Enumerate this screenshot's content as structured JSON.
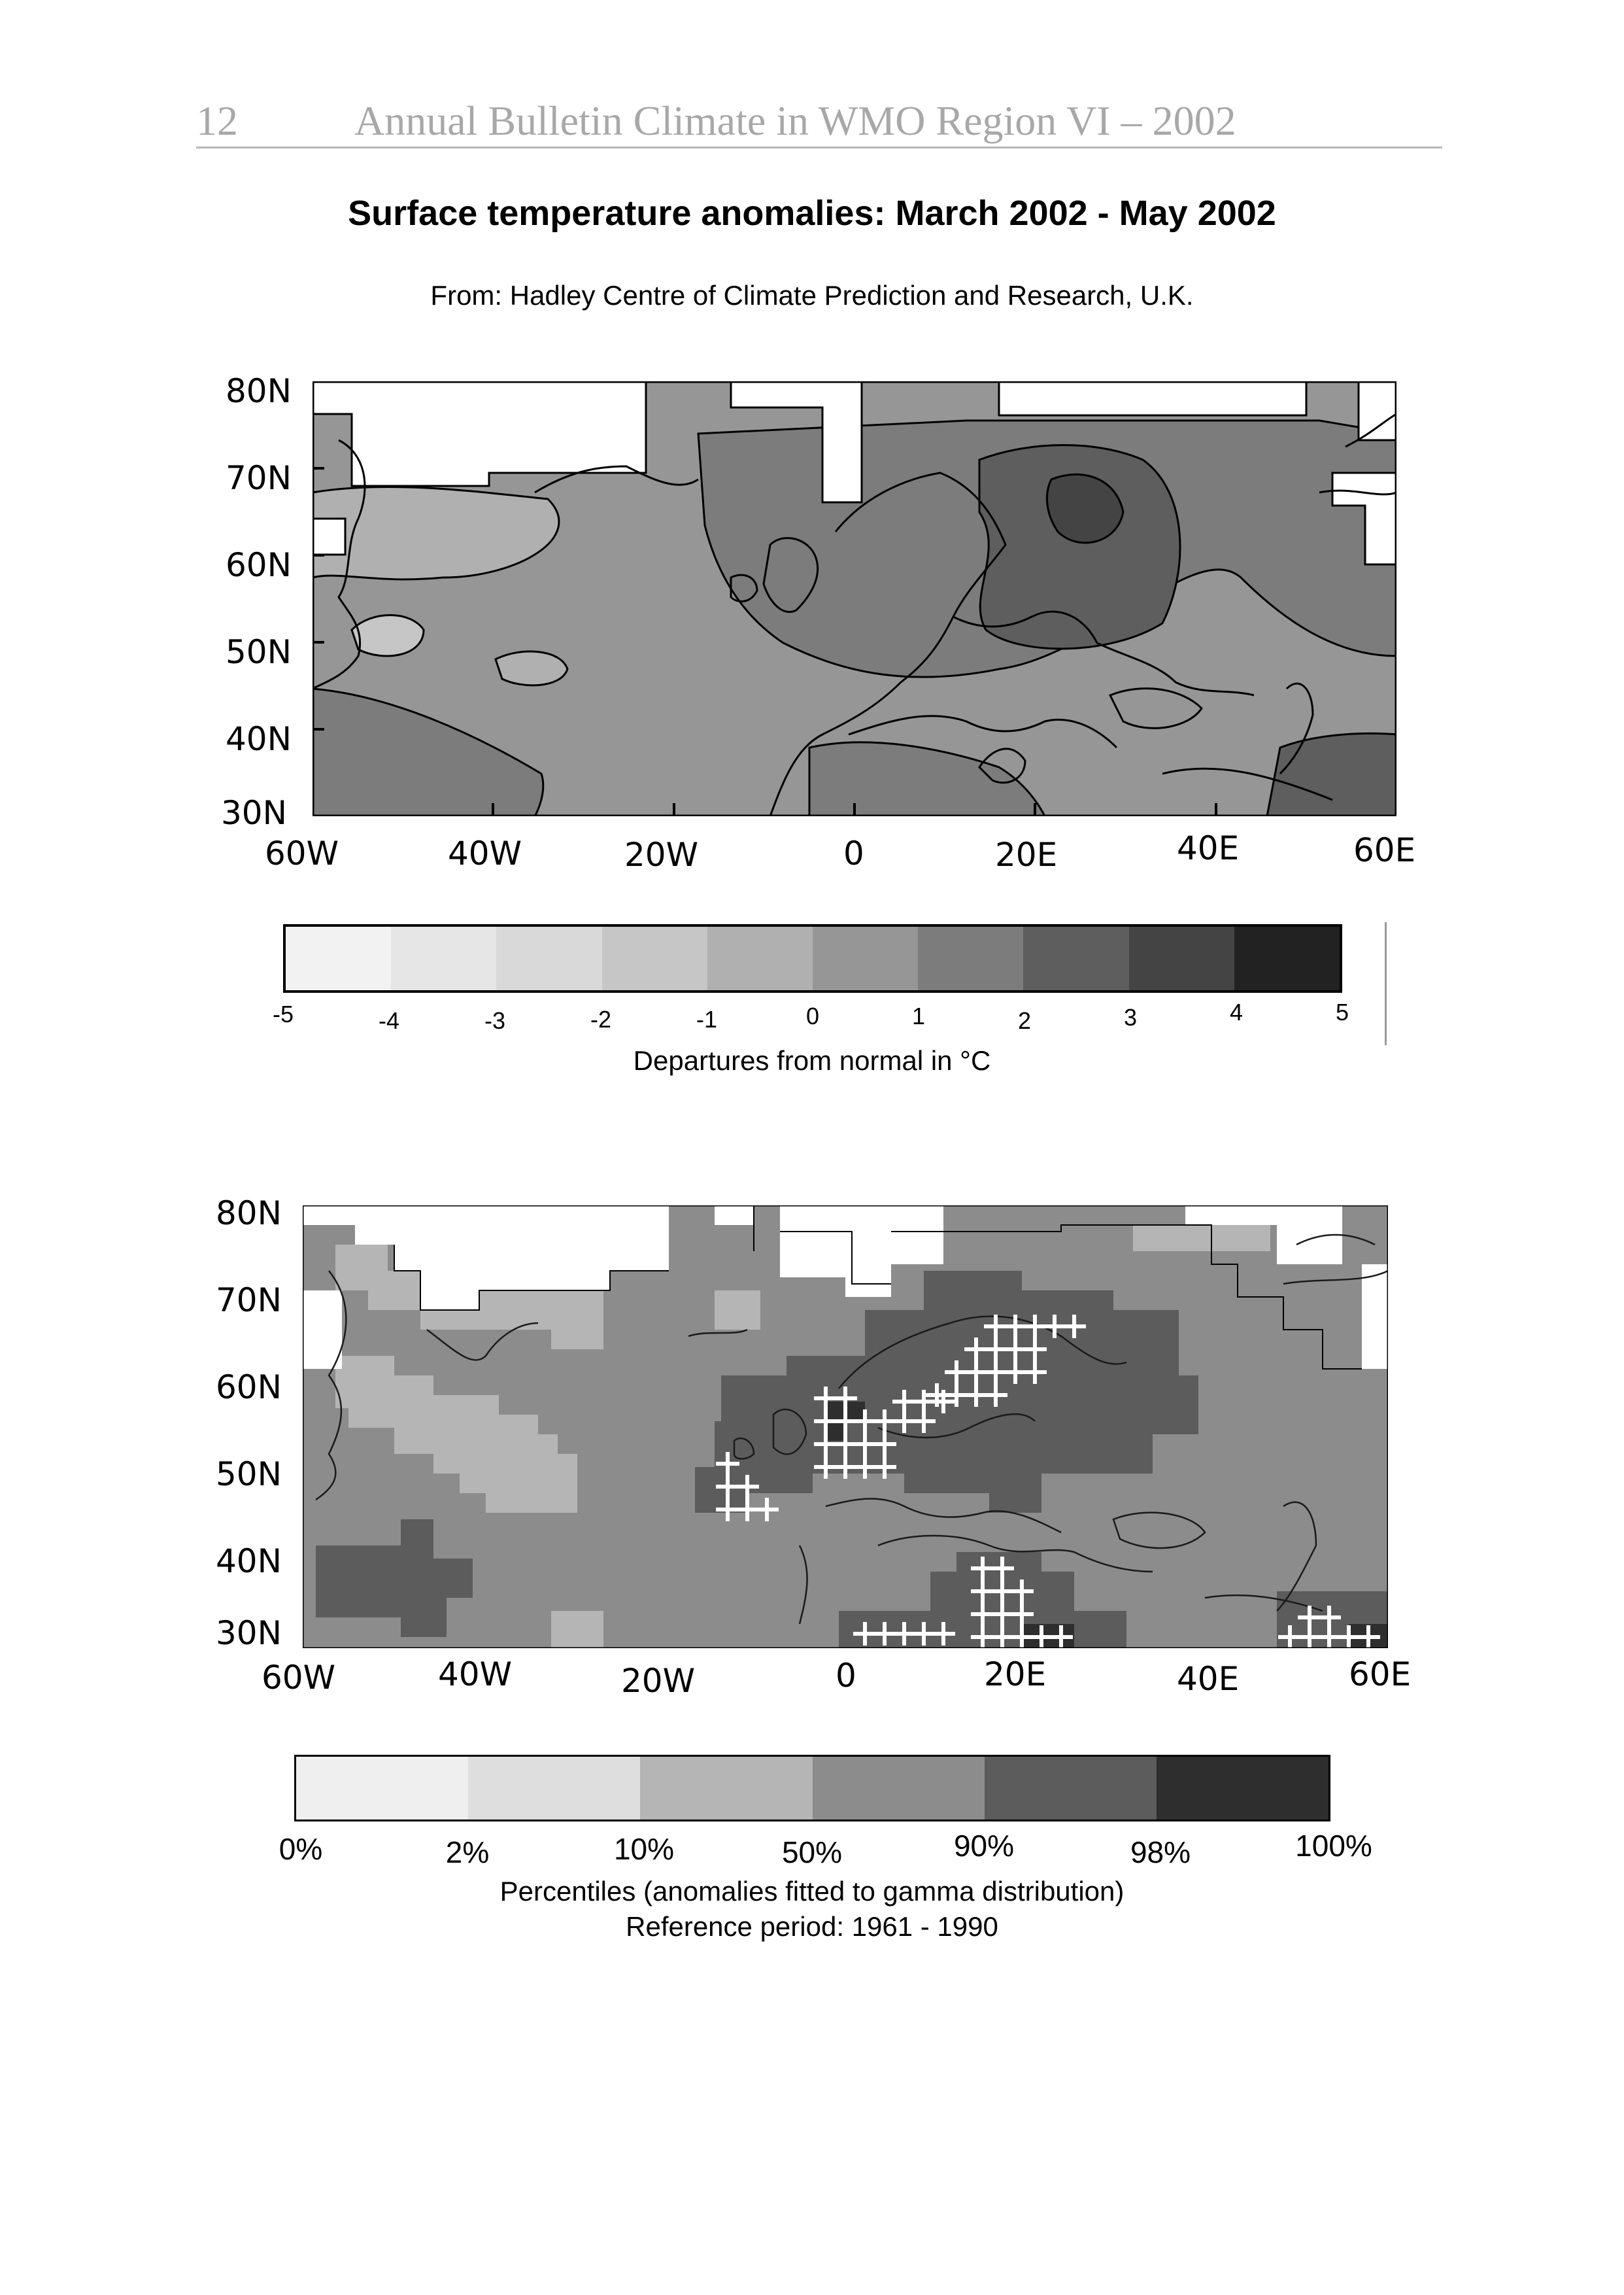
{
  "header": {
    "page_number": "12",
    "running_title": "Annual Bulletin Climate in WMO Region VI – 2002"
  },
  "title": "Surface temperature anomalies: March 2002 - May 2002",
  "source": "From: Hadley Centre of Climate Prediction and Research, U.K.",
  "map1": {
    "lat_labels": [
      "80N",
      "70N",
      "60N",
      "50N",
      "40N",
      "30N"
    ],
    "lon_labels": [
      "60W",
      "40W",
      "20W",
      "0",
      "20E",
      "40E",
      "60E"
    ]
  },
  "colorbar1": {
    "colors": [
      "#f2f2f2",
      "#e6e6e6",
      "#d9d9d9",
      "#c6c6c6",
      "#b0b0b0",
      "#969696",
      "#7c7c7c",
      "#5e5e5e",
      "#444444",
      "#222222"
    ],
    "ticks": [
      "-5",
      "-4",
      "-3",
      "-2",
      "-1",
      "0",
      "1",
      "2",
      "3",
      "4",
      "5"
    ],
    "caption": "Departures from normal in °C"
  },
  "map2": {
    "lat_labels": [
      "80N",
      "70N",
      "60N",
      "50N",
      "40N",
      "30N"
    ],
    "lon_labels": [
      "60W",
      "40W",
      "20W",
      "0",
      "20E",
      "40E",
      "60E"
    ]
  },
  "colorbar2": {
    "colors": [
      "#efefef",
      "#dedede",
      "#b5b5b5",
      "#8c8c8c",
      "#5c5c5c",
      "#2e2e2e"
    ],
    "ticks": [
      "0%",
      "2%",
      "10%",
      "50%",
      "90%",
      "98%",
      "100%"
    ],
    "caption_line1": "Percentiles (anomalies fitted to gamma distribution)",
    "caption_line2": "Reference period: 1961 - 1990"
  }
}
